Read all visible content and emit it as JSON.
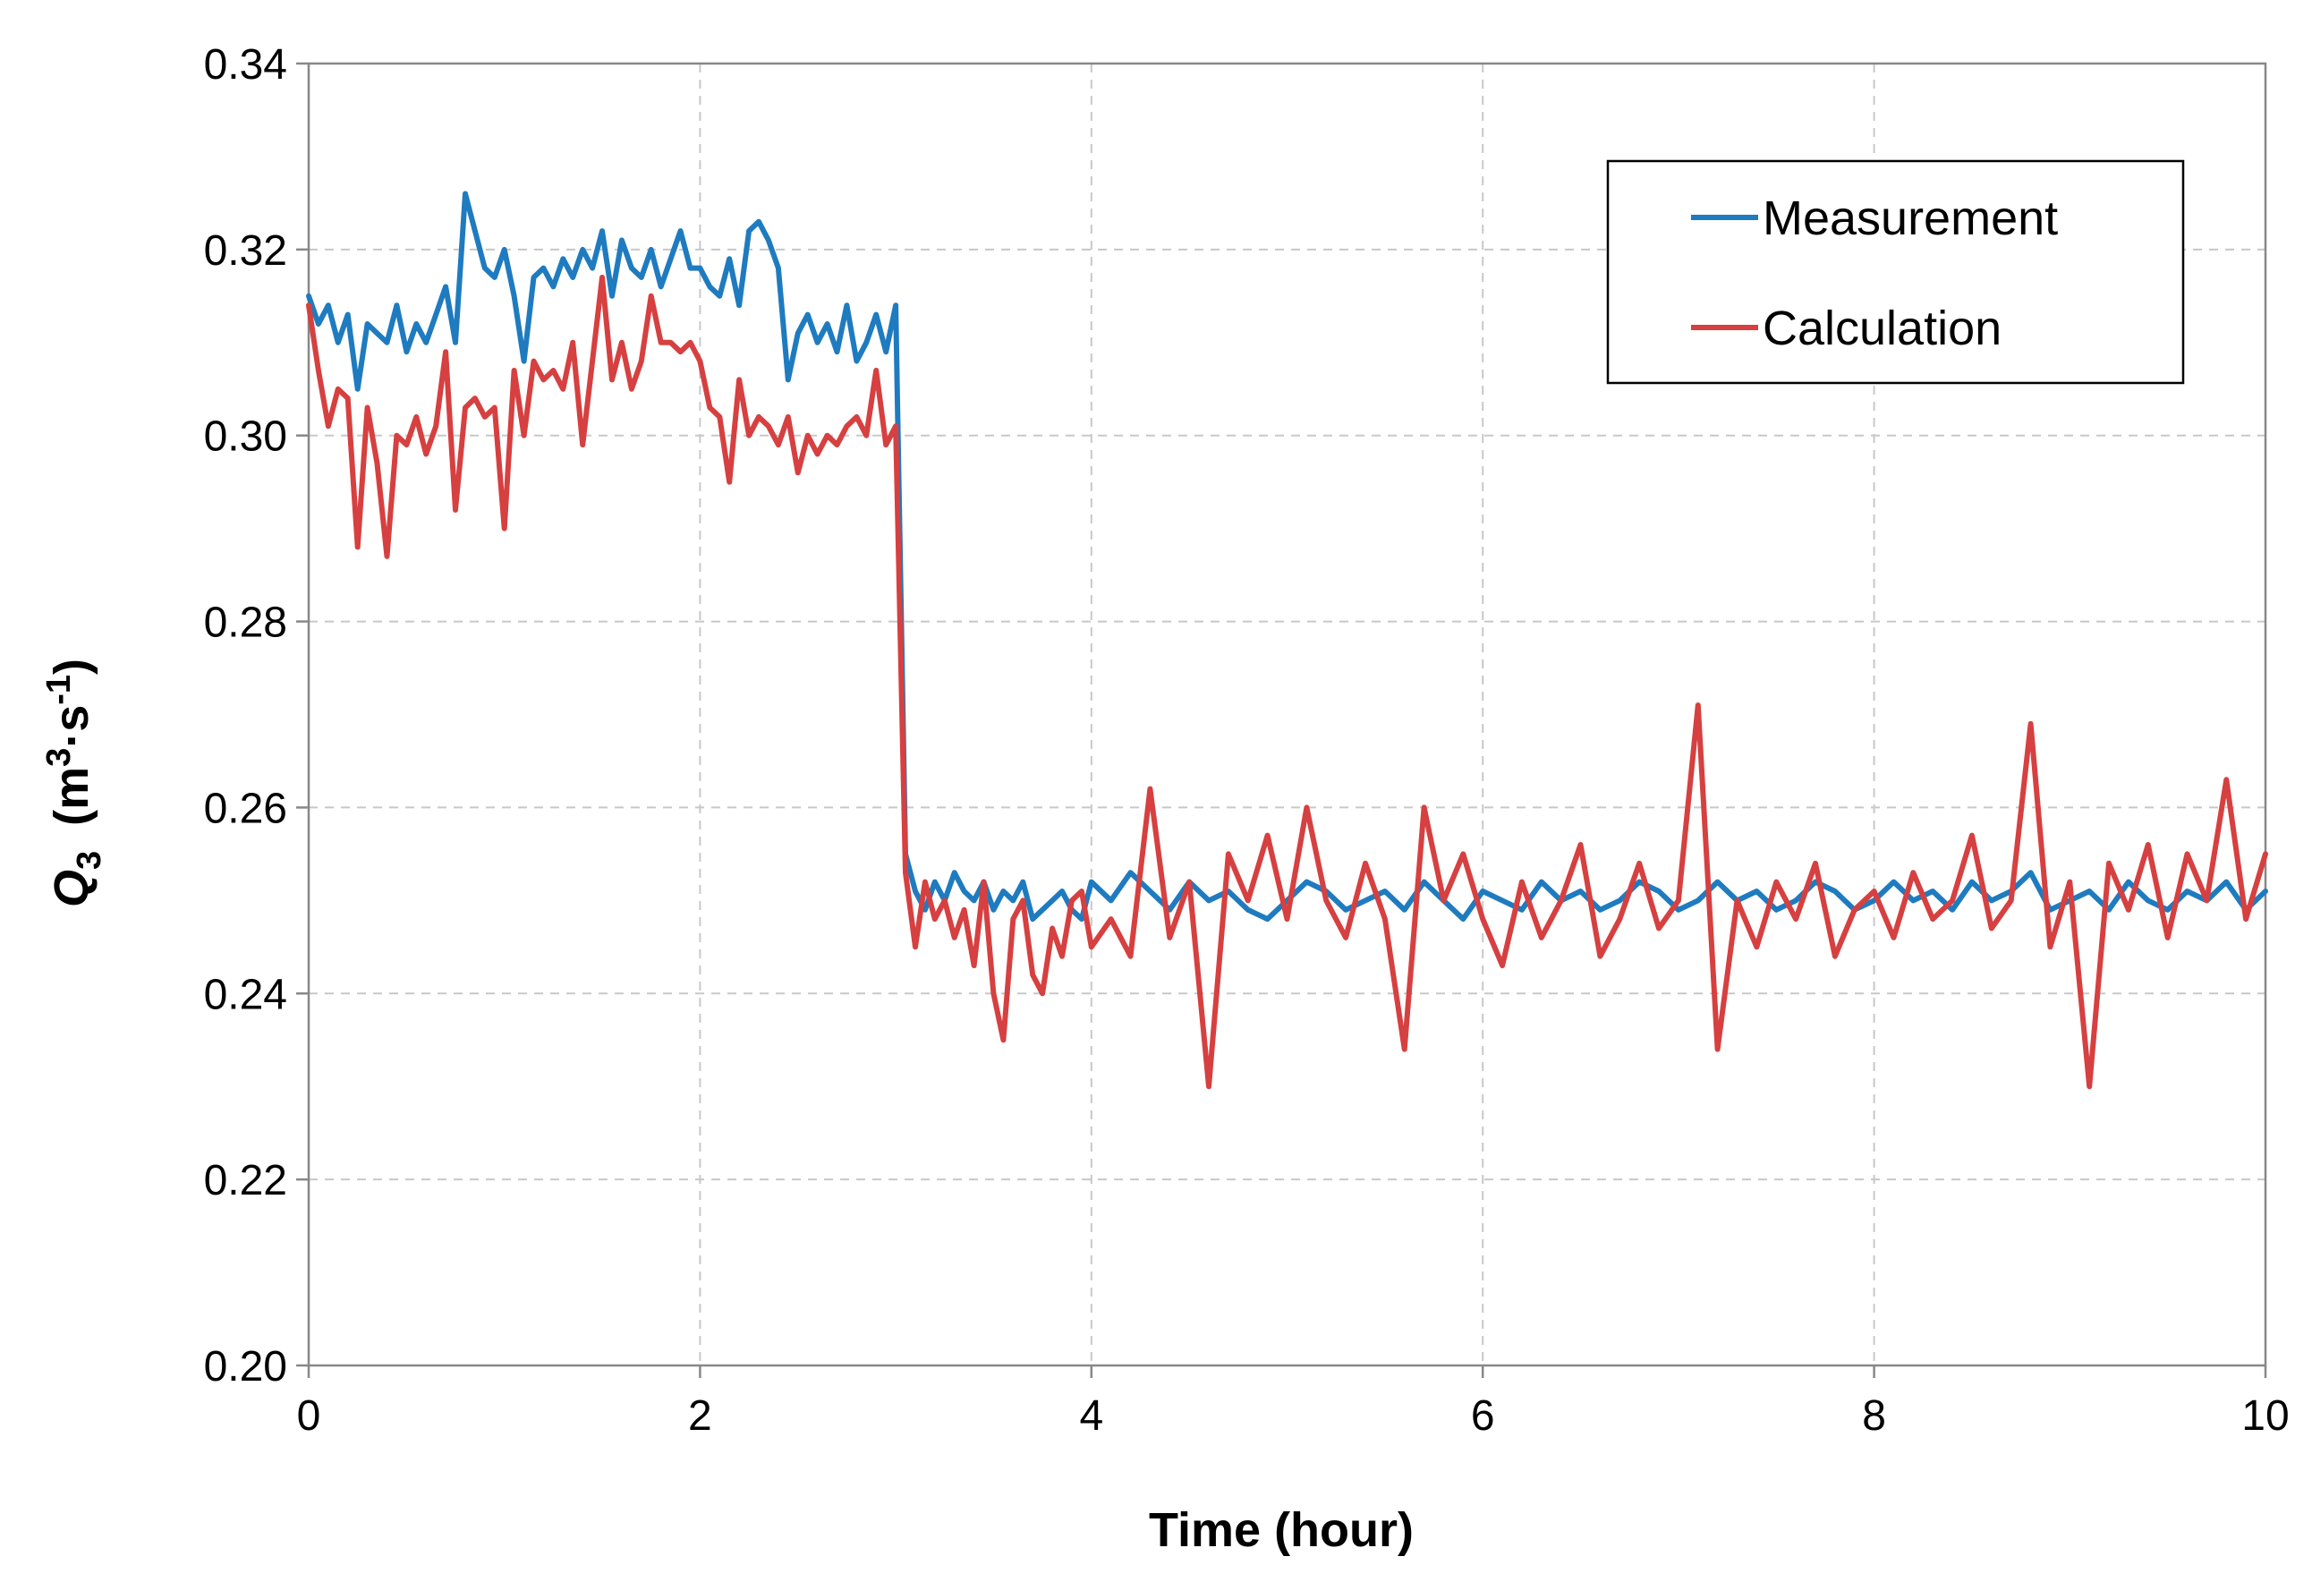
{
  "chart_data": {
    "type": "line",
    "title": "",
    "xlabel": "Time (hour)",
    "ylabel": {
      "symbol": "Q",
      "sub": "3",
      "units_pre": "(m",
      "units_sup1": "3",
      "units_mid": "·s",
      "units_sup2": "-1",
      "units_post": ")"
    },
    "xlim": [
      0,
      10
    ],
    "ylim": [
      0.2,
      0.34
    ],
    "xticks": [
      0,
      2,
      4,
      6,
      8,
      10
    ],
    "xtick_labels": [
      "0",
      "2",
      "4",
      "6",
      "8",
      "10"
    ],
    "yticks": [
      0.2,
      0.22,
      0.24,
      0.26,
      0.28,
      0.3,
      0.32,
      0.34
    ],
    "ytick_labels": [
      "0.20",
      "0.22",
      "0.24",
      "0.26",
      "0.28",
      "0.30",
      "0.32",
      "0.34"
    ],
    "grid": true,
    "legend_position": "top-right",
    "series": [
      {
        "name": "Measurement",
        "color": "#1f7bbf",
        "x": [
          0,
          0.05,
          0.1,
          0.15,
          0.2,
          0.25,
          0.3,
          0.35,
          0.4,
          0.45,
          0.5,
          0.55,
          0.6,
          0.65,
          0.7,
          0.75,
          0.8,
          0.85,
          0.9,
          0.95,
          1.0,
          1.05,
          1.1,
          1.15,
          1.2,
          1.25,
          1.3,
          1.35,
          1.4,
          1.45,
          1.5,
          1.55,
          1.6,
          1.65,
          1.7,
          1.75,
          1.8,
          1.85,
          1.9,
          1.95,
          2.0,
          2.05,
          2.1,
          2.15,
          2.2,
          2.25,
          2.3,
          2.35,
          2.4,
          2.45,
          2.5,
          2.55,
          2.6,
          2.65,
          2.7,
          2.75,
          2.8,
          2.85,
          2.9,
          2.95,
          3.0,
          3.05,
          3.1,
          3.15,
          3.2,
          3.25,
          3.3,
          3.35,
          3.4,
          3.45,
          3.5,
          3.55,
          3.6,
          3.65,
          3.7,
          3.75,
          3.8,
          3.85,
          3.9,
          3.95,
          4.0,
          4.1,
          4.2,
          4.3,
          4.4,
          4.5,
          4.6,
          4.7,
          4.8,
          4.9,
          5.0,
          5.1,
          5.2,
          5.3,
          5.4,
          5.5,
          5.6,
          5.7,
          5.8,
          5.9,
          6.0,
          6.1,
          6.2,
          6.3,
          6.4,
          6.5,
          6.6,
          6.7,
          6.8,
          6.9,
          7.0,
          7.1,
          7.2,
          7.3,
          7.4,
          7.5,
          7.6,
          7.7,
          7.8,
          7.9,
          8.0,
          8.1,
          8.2,
          8.3,
          8.4,
          8.5,
          8.6,
          8.7,
          8.8,
          8.9,
          9.0,
          9.1,
          9.2,
          9.3,
          9.4,
          9.5,
          9.6,
          9.7,
          9.8,
          9.9,
          10.0
        ],
        "y": [
          0.315,
          0.312,
          0.314,
          0.31,
          0.313,
          0.305,
          0.312,
          0.311,
          0.31,
          0.314,
          0.309,
          0.312,
          0.31,
          0.313,
          0.316,
          0.31,
          0.326,
          0.322,
          0.318,
          0.317,
          0.32,
          0.315,
          0.308,
          0.317,
          0.318,
          0.316,
          0.319,
          0.317,
          0.32,
          0.318,
          0.322,
          0.315,
          0.321,
          0.318,
          0.317,
          0.32,
          0.316,
          0.319,
          0.322,
          0.318,
          0.318,
          0.316,
          0.315,
          0.319,
          0.314,
          0.322,
          0.323,
          0.321,
          0.318,
          0.306,
          0.311,
          0.313,
          0.31,
          0.312,
          0.309,
          0.314,
          0.308,
          0.31,
          0.313,
          0.309,
          0.314,
          0.255,
          0.251,
          0.249,
          0.252,
          0.25,
          0.253,
          0.251,
          0.25,
          0.252,
          0.249,
          0.251,
          0.25,
          0.252,
          0.248,
          0.249,
          0.25,
          0.251,
          0.249,
          0.248,
          0.252,
          0.25,
          0.253,
          0.251,
          0.249,
          0.252,
          0.25,
          0.251,
          0.249,
          0.248,
          0.25,
          0.252,
          0.251,
          0.249,
          0.25,
          0.251,
          0.249,
          0.252,
          0.25,
          0.248,
          0.251,
          0.25,
          0.249,
          0.252,
          0.25,
          0.251,
          0.249,
          0.25,
          0.252,
          0.251,
          0.249,
          0.25,
          0.252,
          0.25,
          0.251,
          0.249,
          0.25,
          0.252,
          0.251,
          0.249,
          0.25,
          0.252,
          0.25,
          0.251,
          0.249,
          0.252,
          0.25,
          0.251,
          0.253,
          0.249,
          0.25,
          0.251,
          0.249,
          0.252,
          0.25,
          0.249,
          0.251,
          0.25,
          0.252,
          0.249,
          0.251
        ]
      },
      {
        "name": "Calculation",
        "color": "#d64040",
        "x": [
          0,
          0.05,
          0.1,
          0.15,
          0.2,
          0.25,
          0.3,
          0.35,
          0.4,
          0.45,
          0.5,
          0.55,
          0.6,
          0.65,
          0.7,
          0.75,
          0.8,
          0.85,
          0.9,
          0.95,
          1.0,
          1.05,
          1.1,
          1.15,
          1.2,
          1.25,
          1.3,
          1.35,
          1.4,
          1.45,
          1.5,
          1.55,
          1.6,
          1.65,
          1.7,
          1.75,
          1.8,
          1.85,
          1.9,
          1.95,
          2.0,
          2.05,
          2.1,
          2.15,
          2.2,
          2.25,
          2.3,
          2.35,
          2.4,
          2.45,
          2.5,
          2.55,
          2.6,
          2.65,
          2.7,
          2.75,
          2.8,
          2.85,
          2.9,
          2.95,
          3.0,
          3.05,
          3.1,
          3.15,
          3.2,
          3.25,
          3.3,
          3.35,
          3.4,
          3.45,
          3.5,
          3.55,
          3.6,
          3.65,
          3.7,
          3.75,
          3.8,
          3.85,
          3.9,
          3.95,
          4.0,
          4.1,
          4.2,
          4.3,
          4.4,
          4.5,
          4.6,
          4.7,
          4.8,
          4.9,
          5.0,
          5.1,
          5.2,
          5.3,
          5.4,
          5.5,
          5.6,
          5.7,
          5.8,
          5.9,
          6.0,
          6.1,
          6.2,
          6.3,
          6.4,
          6.5,
          6.6,
          6.7,
          6.8,
          6.9,
          7.0,
          7.1,
          7.2,
          7.3,
          7.4,
          7.5,
          7.6,
          7.7,
          7.8,
          7.9,
          8.0,
          8.1,
          8.2,
          8.3,
          8.4,
          8.5,
          8.6,
          8.7,
          8.8,
          8.9,
          9.0,
          9.1,
          9.2,
          9.3,
          9.4,
          9.5,
          9.6,
          9.7,
          9.8,
          9.9,
          10.0
        ],
        "y": [
          0.314,
          0.307,
          0.301,
          0.305,
          0.304,
          0.288,
          0.303,
          0.297,
          0.287,
          0.3,
          0.299,
          0.302,
          0.298,
          0.301,
          0.309,
          0.292,
          0.303,
          0.304,
          0.302,
          0.303,
          0.29,
          0.307,
          0.3,
          0.308,
          0.306,
          0.307,
          0.305,
          0.31,
          0.299,
          0.308,
          0.317,
          0.306,
          0.31,
          0.305,
          0.308,
          0.315,
          0.31,
          0.31,
          0.309,
          0.31,
          0.308,
          0.303,
          0.302,
          0.295,
          0.306,
          0.3,
          0.302,
          0.301,
          0.299,
          0.302,
          0.296,
          0.3,
          0.298,
          0.3,
          0.299,
          0.301,
          0.302,
          0.3,
          0.307,
          0.299,
          0.301,
          0.253,
          0.245,
          0.252,
          0.248,
          0.25,
          0.246,
          0.249,
          0.243,
          0.252,
          0.24,
          0.235,
          0.248,
          0.25,
          0.242,
          0.24,
          0.247,
          0.244,
          0.25,
          0.251,
          0.245,
          0.248,
          0.244,
          0.262,
          0.246,
          0.252,
          0.23,
          0.255,
          0.25,
          0.257,
          0.248,
          0.26,
          0.25,
          0.246,
          0.254,
          0.248,
          0.234,
          0.26,
          0.25,
          0.255,
          0.248,
          0.243,
          0.252,
          0.246,
          0.25,
          0.256,
          0.244,
          0.248,
          0.254,
          0.247,
          0.25,
          0.271,
          0.234,
          0.25,
          0.245,
          0.252,
          0.248,
          0.254,
          0.244,
          0.249,
          0.251,
          0.246,
          0.253,
          0.248,
          0.25,
          0.257,
          0.247,
          0.25,
          0.269,
          0.245,
          0.252,
          0.23,
          0.254,
          0.249,
          0.256,
          0.246,
          0.255,
          0.25,
          0.263,
          0.248,
          0.255
        ]
      }
    ]
  }
}
